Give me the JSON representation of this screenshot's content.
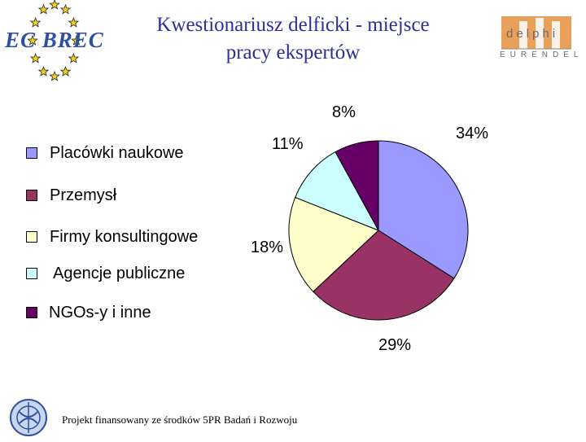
{
  "title": {
    "line1": "Kwestionariusz delficki - miejsce",
    "line2": "pracy ekspertów"
  },
  "logos": {
    "ecbrec": "EC BREC",
    "delphi": "delphi",
    "eurendel": "EURENDEL"
  },
  "footer": {
    "text": "Projekt finansowany ze środków 5PR Badań i Rozwoju"
  },
  "chart_data": {
    "type": "pie",
    "title": "",
    "unit": "%",
    "slices": [
      {
        "label": "Placówki naukowe",
        "value": 34,
        "display": "34%",
        "color": "#9999ff"
      },
      {
        "label": "Przemysł",
        "value": 29,
        "display": "29%",
        "color": "#993366"
      },
      {
        "label": "Firmy konsultingowe",
        "value": 18,
        "display": "18%",
        "color": "#ffffcc"
      },
      {
        "label": "Agencje publiczne",
        "value": 11,
        "display": "11%",
        "color": "#ccffff"
      },
      {
        "label": "NGOs-y i inne",
        "value": 8,
        "display": "8%",
        "color": "#660066"
      }
    ],
    "legend": {
      "placement": "left",
      "entries": [
        "Placówki naukowe",
        "Przemysł",
        "Firmy konsultingowe",
        "Agencje publiczne",
        "NGOs-y i inne"
      ]
    }
  }
}
